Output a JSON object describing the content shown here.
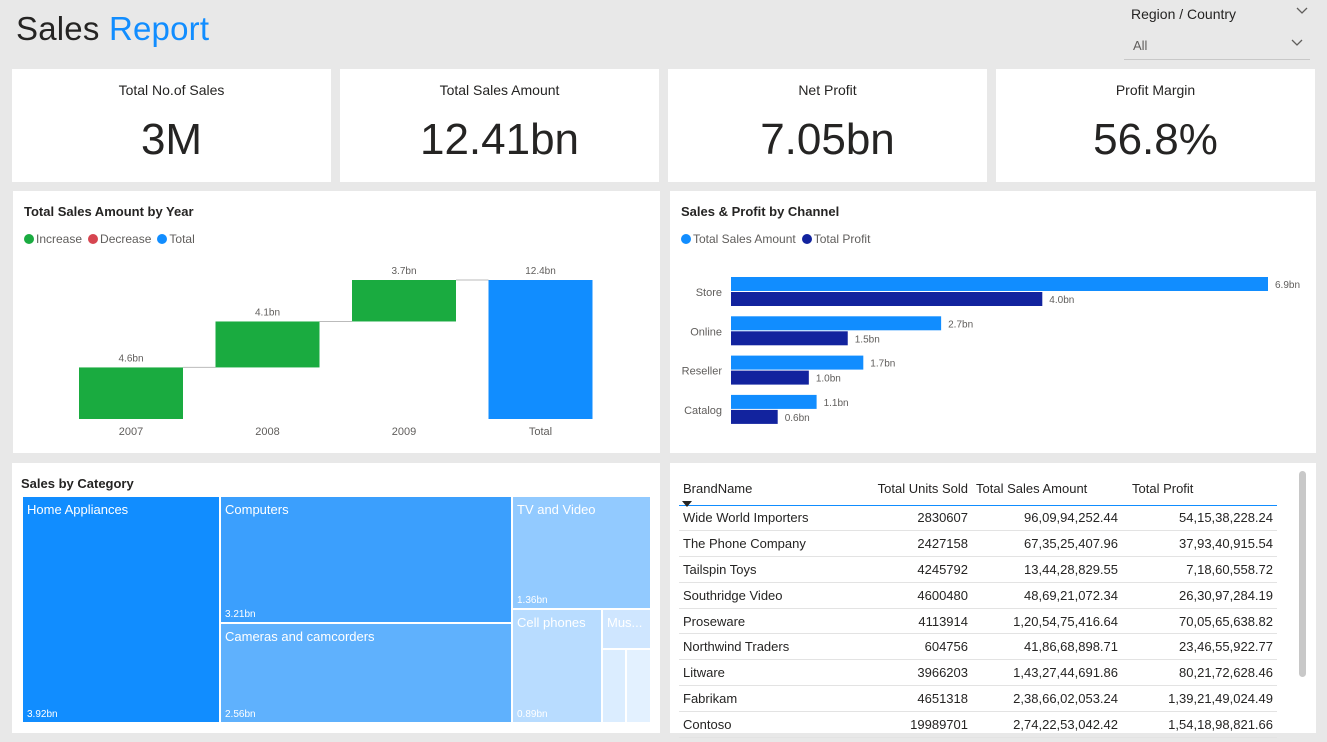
{
  "header": {
    "title_part1": "Sales",
    "title_part2": "Report"
  },
  "slicer": {
    "label": "Region / Country",
    "value": "All"
  },
  "kpis": [
    {
      "label": "Total No.of Sales",
      "value": "3M"
    },
    {
      "label": "Total Sales Amount",
      "value": "12.41bn"
    },
    {
      "label": "Net Profit",
      "value": "7.05bn"
    },
    {
      "label": "Profit Margin",
      "value": "56.8%"
    }
  ],
  "waterfall": {
    "title": "Total Sales Amount by Year",
    "legend": [
      "Increase",
      "Decrease",
      "Total"
    ],
    "colors": {
      "increase": "#1aab40",
      "decrease": "#d64550",
      "total": "#118dff"
    }
  },
  "channel": {
    "title": "Sales & Profit by Channel",
    "legend": [
      "Total Sales Amount",
      "Total Profit"
    ],
    "colors": {
      "sales": "#118dff",
      "profit": "#12239e"
    }
  },
  "chart_data": [
    {
      "type": "waterfall",
      "title": "Total Sales Amount by Year",
      "categories": [
        "2007",
        "2008",
        "2009",
        "Total"
      ],
      "values": [
        4.6,
        4.1,
        3.7,
        12.4
      ],
      "labels": [
        "4.6bn",
        "4.1bn",
        "3.7bn",
        "12.4bn"
      ],
      "kinds": [
        "increase",
        "increase",
        "increase",
        "total"
      ],
      "unit": "bn"
    },
    {
      "type": "bar",
      "orientation": "horizontal",
      "title": "Sales & Profit by Channel",
      "categories": [
        "Store",
        "Online",
        "Reseller",
        "Catalog"
      ],
      "series": [
        {
          "name": "Total Sales Amount",
          "values": [
            6.9,
            2.7,
            1.7,
            1.1
          ],
          "labels": [
            "6.9bn",
            "2.7bn",
            "1.7bn",
            "1.1bn"
          ]
        },
        {
          "name": "Total Profit",
          "values": [
            4.0,
            1.5,
            1.0,
            0.6
          ],
          "labels": [
            "4.0bn",
            "1.5bn",
            "1.0bn",
            "0.6bn"
          ]
        }
      ],
      "unit": "bn"
    },
    {
      "type": "treemap",
      "title": "Sales by Category",
      "items": [
        {
          "name": "Home Appliances",
          "value": 3.92,
          "label": "3.92bn"
        },
        {
          "name": "Computers",
          "value": 3.21,
          "label": "3.21bn"
        },
        {
          "name": "Cameras and camcorders",
          "value": 2.56,
          "label": "2.56bn"
        },
        {
          "name": "TV and Video",
          "value": 1.36,
          "label": "1.36bn"
        },
        {
          "name": "Cell phones",
          "value": 0.89,
          "label": "0.89bn"
        },
        {
          "name": "Mus...",
          "value": 0.3,
          "label": ""
        }
      ]
    }
  ],
  "treemap": {
    "title": "Sales by Category",
    "cells": [
      {
        "name": "Home Appliances",
        "label": "3.92bn"
      },
      {
        "name": "Computers",
        "label": "3.21bn"
      },
      {
        "name": "Cameras and camcorders",
        "label": "2.56bn"
      },
      {
        "name": "TV and Video",
        "label": "1.36bn"
      },
      {
        "name": "Cell phones",
        "label": "0.89bn"
      },
      {
        "name": "Mus...",
        "label": ""
      }
    ]
  },
  "table": {
    "columns": [
      "BrandName",
      "Total Units Sold",
      "Total Sales Amount",
      "Total Profit"
    ],
    "rows": [
      [
        "Wide World Importers",
        "2830607",
        "96,09,94,252.44",
        "54,15,38,228.24"
      ],
      [
        "The Phone Company",
        "2427158",
        "67,35,25,407.96",
        "37,93,40,915.54"
      ],
      [
        "Tailspin Toys",
        "4245792",
        "13,44,28,829.55",
        "7,18,60,558.72"
      ],
      [
        "Southridge Video",
        "4600480",
        "48,69,21,072.34",
        "26,30,97,284.19"
      ],
      [
        "Proseware",
        "4113914",
        "1,20,54,75,416.64",
        "70,05,65,638.82"
      ],
      [
        "Northwind Traders",
        "604756",
        "41,86,68,898.71",
        "23,46,55,922.77"
      ],
      [
        "Litware",
        "3966203",
        "1,43,27,44,691.86",
        "80,21,72,628.46"
      ],
      [
        "Fabrikam",
        "4651318",
        "2,38,66,02,053.24",
        "1,39,21,49,024.49"
      ],
      [
        "Contoso",
        "19989701",
        "2,74,22,53,042.42",
        "1,54,18,98,821.66"
      ]
    ]
  }
}
